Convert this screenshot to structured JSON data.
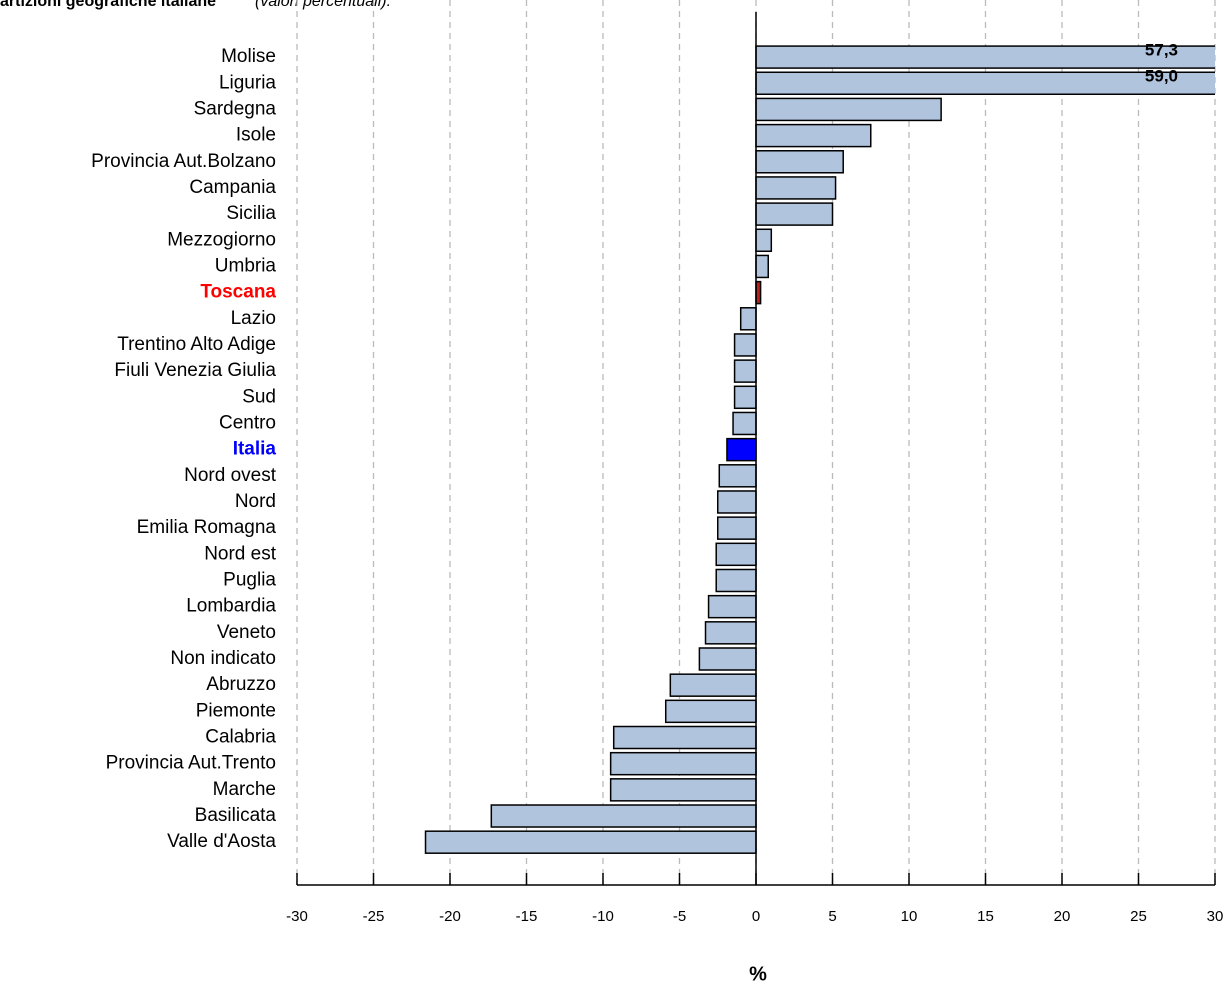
{
  "chart_data": {
    "type": "barh",
    "title": "artizioni geografiche italiane",
    "subtitle": "(valori percentuali).",
    "xlabel": "%",
    "categories": [
      "Molise",
      "Liguria",
      "Sardegna",
      "Isole",
      "Provincia Aut.Bolzano",
      "Campania",
      "Sicilia",
      "Mezzogiorno",
      "Umbria",
      "Toscana",
      "Lazio",
      "Trentino Alto Adige",
      "Fiuli Venezia Giulia",
      "Sud",
      "Centro",
      "Italia",
      "Nord ovest",
      "Nord",
      "Emilia Romagna",
      "Nord est",
      "Puglia",
      "Lombardia",
      "Veneto",
      "Non indicato",
      "Abruzzo",
      "Piemonte",
      "Calabria",
      "Provincia Aut.Trento",
      "Marche",
      "Basilicata",
      "Valle d'Aosta"
    ],
    "values": [
      57.3,
      59.0,
      12.1,
      7.5,
      5.7,
      5.2,
      5.0,
      1.0,
      0.8,
      0.3,
      -1.0,
      -1.4,
      -1.4,
      -1.4,
      -1.5,
      -1.9,
      -2.4,
      -2.5,
      -2.5,
      -2.6,
      -2.6,
      -3.1,
      -3.3,
      -3.7,
      -5.6,
      -5.9,
      -9.3,
      -9.5,
      -9.5,
      -17.3,
      -21.6
    ],
    "value_labels": [
      "57,3",
      "59,0",
      null,
      null,
      null,
      null,
      null,
      null,
      null,
      null,
      null,
      null,
      null,
      null,
      null,
      null,
      null,
      null,
      null,
      null,
      null,
      null,
      null,
      null,
      null,
      null,
      null,
      null,
      null,
      null,
      null
    ],
    "colors": [
      "#b0c4de",
      "#b0c4de",
      "#b0c4de",
      "#b0c4de",
      "#b0c4de",
      "#b0c4de",
      "#b0c4de",
      "#b0c4de",
      "#b0c4de",
      "#c0201a",
      "#b0c4de",
      "#b0c4de",
      "#b0c4de",
      "#b0c4de",
      "#b0c4de",
      "#0000ff",
      "#b0c4de",
      "#b0c4de",
      "#b0c4de",
      "#b0c4de",
      "#b0c4de",
      "#b0c4de",
      "#b0c4de",
      "#b0c4de",
      "#b0c4de",
      "#b0c4de",
      "#b0c4de",
      "#b0c4de",
      "#b0c4de",
      "#b0c4de",
      "#b0c4de"
    ],
    "label_colors": [
      "#000000",
      "#000000",
      "#000000",
      "#000000",
      "#000000",
      "#000000",
      "#000000",
      "#000000",
      "#000000",
      "#ff0000",
      "#000000",
      "#000000",
      "#000000",
      "#000000",
      "#000000",
      "#0000ff",
      "#000000",
      "#000000",
      "#000000",
      "#000000",
      "#000000",
      "#000000",
      "#000000",
      "#000000",
      "#000000",
      "#000000",
      "#000000",
      "#000000",
      "#000000",
      "#000000",
      "#000000"
    ],
    "xlim": [
      -30,
      30
    ],
    "xticks": [
      -30,
      -25,
      -20,
      -15,
      -10,
      -5,
      0,
      5,
      10,
      15,
      20,
      25,
      30
    ],
    "grid": true
  }
}
